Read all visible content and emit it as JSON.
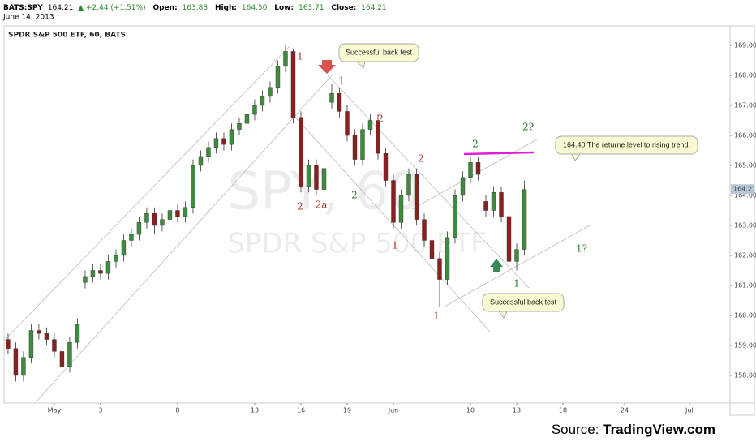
{
  "header": {
    "symbol": "BATS:SPY",
    "price": "164.21",
    "change": "▲ +2.44 (+1.51%)",
    "open_label": "Open:",
    "open": "163.88",
    "high_label": "High:",
    "high": "164.50",
    "low_label": "Low:",
    "low": "163.71",
    "close_label": "Close:",
    "close": "164.21",
    "date": "June 14, 2013"
  },
  "chart_data": {
    "type": "candlestick",
    "title": "SPDR S&P 500 ETF, 60, BATS",
    "watermark": "SPY, 60",
    "watermark_sub": "SPDR S&P 500 ETF",
    "up_color": "#3d8b3d",
    "down_color": "#8b1f1f",
    "x": [
      -3,
      -2.5,
      -2,
      -1.5,
      -1,
      -0.5,
      0,
      0.5,
      1,
      1.5,
      2,
      2.5,
      3,
      3.5,
      4,
      4.5,
      5,
      5.5,
      6,
      6.5,
      7,
      7.5,
      8,
      8.5,
      9,
      9.5,
      10,
      10.5,
      11,
      11.5,
      12,
      12.5,
      13,
      13.5,
      14,
      14.5,
      15,
      15.5,
      16,
      16.5,
      17,
      17.5,
      18,
      18.5,
      19,
      19.5,
      20,
      20.5,
      21,
      21.5,
      22,
      22.5,
      23,
      23.5,
      24,
      24.5,
      25,
      25.5,
      26,
      26.5,
      27,
      27.5,
      28,
      28.5,
      29,
      29.5,
      30,
      30.5
    ],
    "open": [
      159.2,
      158.9,
      158.0,
      158.6,
      159.5,
      159.4,
      159.2,
      158.8,
      158.3,
      159.1,
      161.1,
      161.3,
      161.5,
      161.4,
      161.8,
      162.0,
      162.5,
      162.7,
      163.1,
      163.4,
      163.0,
      163.2,
      163.5,
      163.3,
      163.6,
      165.0,
      165.3,
      165.6,
      165.9,
      165.7,
      166.2,
      166.4,
      166.7,
      167.0,
      167.3,
      167.6,
      168.3,
      168.8,
      166.6,
      164.3,
      165.0,
      164.2,
      167.1,
      167.4,
      166.8,
      166.0,
      165.2,
      166.2,
      166.5,
      165.4,
      164.5,
      163.1,
      164.0,
      164.7,
      163.2,
      162.5,
      161.9,
      161.2,
      162.6,
      164.0,
      164.6,
      165.1,
      163.8,
      163.5,
      164.1,
      163.3,
      161.8,
      162.2
    ],
    "high": [
      159.4,
      159.1,
      158.8,
      159.7,
      159.7,
      159.6,
      159.4,
      159.0,
      159.3,
      159.9,
      161.5,
      161.7,
      161.7,
      162.0,
      162.2,
      162.7,
      162.9,
      163.3,
      163.6,
      163.6,
      163.4,
      163.7,
      163.7,
      163.8,
      165.2,
      165.5,
      165.8,
      166.1,
      166.1,
      166.4,
      166.6,
      166.9,
      167.2,
      167.5,
      167.8,
      168.5,
      169.0,
      168.9,
      166.8,
      165.2,
      165.2,
      165.1,
      167.7,
      167.6,
      167.0,
      166.2,
      166.4,
      166.7,
      166.7,
      165.6,
      164.7,
      164.2,
      164.9,
      164.9,
      163.4,
      162.7,
      162.1,
      162.8,
      164.2,
      164.8,
      165.3,
      165.3,
      164.0,
      164.3,
      164.3,
      163.5,
      162.4,
      164.5
    ],
    "low": [
      158.7,
      157.8,
      157.8,
      158.4,
      159.2,
      159.0,
      158.6,
      158.1,
      158.1,
      158.9,
      160.9,
      161.1,
      161.2,
      161.2,
      161.6,
      161.8,
      162.3,
      162.5,
      162.9,
      162.7,
      162.8,
      163.0,
      163.1,
      163.1,
      163.4,
      164.8,
      165.1,
      165.4,
      165.5,
      165.5,
      166.0,
      166.2,
      166.5,
      166.8,
      167.1,
      167.4,
      168.1,
      166.4,
      164.1,
      164.1,
      164.0,
      164.0,
      166.9,
      166.6,
      165.8,
      165.0,
      165.0,
      166.0,
      165.2,
      164.3,
      162.9,
      162.9,
      163.8,
      163.0,
      162.3,
      161.7,
      160.3,
      161.0,
      162.4,
      163.8,
      164.4,
      164.5,
      163.3,
      163.3,
      163.1,
      161.6,
      161.5,
      162.0
    ],
    "close": [
      158.9,
      158.0,
      158.6,
      159.5,
      159.4,
      159.2,
      158.8,
      158.3,
      159.1,
      159.7,
      161.3,
      161.5,
      161.4,
      161.8,
      162.0,
      162.5,
      162.7,
      163.1,
      163.4,
      163.0,
      163.2,
      163.5,
      163.3,
      163.6,
      165.0,
      165.3,
      165.6,
      165.9,
      165.7,
      166.2,
      166.4,
      166.7,
      167.0,
      167.3,
      167.6,
      168.3,
      168.8,
      166.6,
      164.3,
      165.0,
      164.2,
      164.9,
      167.4,
      166.8,
      166.0,
      165.2,
      166.2,
      166.5,
      165.4,
      164.5,
      163.1,
      164.0,
      164.7,
      163.2,
      162.5,
      161.9,
      161.2,
      162.6,
      164.0,
      164.6,
      165.1,
      164.7,
      163.5,
      164.1,
      163.3,
      161.8,
      162.2,
      164.2
    ],
    "last_price": 164.21,
    "xlim": [
      -3.26,
      43.84
    ],
    "xticks": [
      {
        "value": 0,
        "label": "May"
      },
      3,
      8,
      13,
      16,
      19,
      {
        "value": 22,
        "label": "Jun"
      },
      {
        "value": 27,
        "label": "10"
      },
      {
        "value": 30,
        "label": "13"
      },
      {
        "value": 33,
        "label": "18"
      },
      {
        "value": 37,
        "label": "24"
      },
      {
        "value": 41.2,
        "label": "Jul"
      }
    ],
    "xtick_labels_override": null,
    "ylim": [
      157.08,
      169.65
    ],
    "yticks": [
      {
        "value": 158,
        "label": "158.00"
      },
      {
        "value": 159,
        "label": "159.00"
      },
      {
        "value": 160,
        "label": "160.00"
      },
      {
        "value": 161,
        "label": "161.00"
      },
      {
        "value": 162,
        "label": "162.00"
      },
      {
        "value": 163,
        "label": "163.00"
      },
      {
        "value": 164,
        "label": "164.00"
      },
      {
        "value": 165,
        "label": "165.00"
      },
      {
        "value": 166,
        "label": "166.00"
      },
      {
        "value": 167,
        "label": "167.00"
      },
      {
        "value": 168,
        "label": "168.00"
      },
      {
        "value": 169,
        "label": "169.00"
      }
    ],
    "wave_labels": [
      {
        "text": "1",
        "color": "#b0392b"
      },
      {
        "text": "1",
        "color": "#b0392b"
      },
      {
        "text": "2",
        "color": "#b0392b"
      },
      {
        "text": "2a",
        "color": "#b0392b"
      },
      {
        "text": "2",
        "color": "#2e7d2e"
      },
      {
        "text": "2",
        "color": "#b0392b"
      },
      {
        "text": "2",
        "color": "#b0392b"
      },
      {
        "text": "1",
        "color": "#b0392b"
      },
      {
        "text": "1",
        "color": "#b0392b"
      },
      {
        "text": "2",
        "color": "#2e7d2e"
      },
      {
        "text": "2?",
        "color": "#2e7d2e"
      },
      {
        "text": "1?",
        "color": "#2e7d2e"
      },
      {
        "text": "1",
        "color": "#2e7d2e"
      }
    ],
    "callouts": [
      "Successful back test",
      "Successful back test",
      "164.40 The returne level to rising trend."
    ]
  },
  "source": {
    "prefix": "Source: ",
    "name": "TradingView.com"
  }
}
